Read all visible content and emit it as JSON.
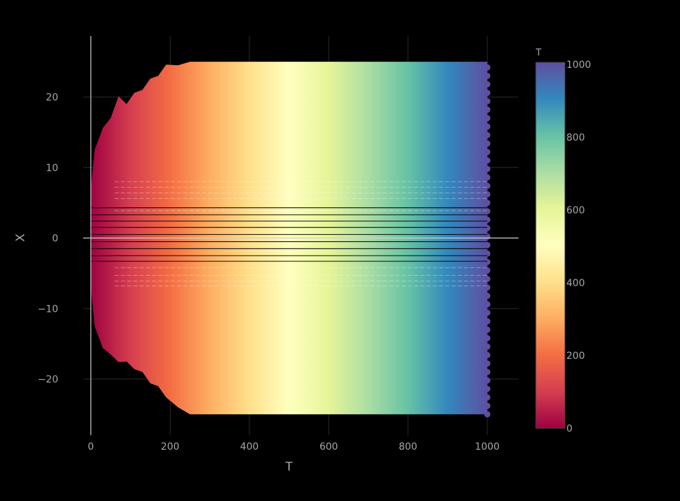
{
  "chart_data": {
    "type": "scatter",
    "title": "",
    "xlabel": "T",
    "ylabel": "X",
    "xlim": [
      0,
      1000
    ],
    "ylim": [
      -25,
      25
    ],
    "x_ticks": [
      0,
      200,
      400,
      600,
      800,
      1000
    ],
    "y_ticks": [
      -20,
      -10,
      0,
      10,
      20
    ],
    "x_tick_labels": [
      "0",
      "200",
      "400",
      "600",
      "800",
      "1000"
    ],
    "y_tick_labels": [
      "−20",
      "−10",
      "0",
      "10",
      "20"
    ],
    "grid": true,
    "colorbar": {
      "title": "T",
      "colorscale": "Spectral",
      "range": [
        0,
        1000
      ],
      "ticks": [
        "0",
        "200",
        "400",
        "600",
        "800",
        "1000"
      ]
    },
    "envelope": {
      "description_points_T": [
        0,
        10,
        20,
        30,
        50,
        70,
        90,
        110,
        130,
        150,
        170,
        190,
        220,
        250,
        300,
        350,
        400,
        500,
        1000
      ],
      "upper_X": [
        7,
        12,
        14,
        15,
        17,
        19.5,
        19,
        20,
        21,
        22,
        23,
        24,
        24.5,
        25,
        25,
        25,
        25,
        25,
        25
      ],
      "lower_X": [
        -7,
        -12,
        -14,
        -15,
        -16.5,
        -17,
        -17.5,
        -18,
        -19,
        -20,
        -21,
        -22,
        -24,
        -25,
        -25,
        -25,
        -25,
        -25,
        -25
      ]
    },
    "colors": {
      "background": "#000000",
      "grid": "#2a2a2a",
      "axis_line": "#d0d0d0",
      "tick_text": "#a8a8a8"
    }
  }
}
